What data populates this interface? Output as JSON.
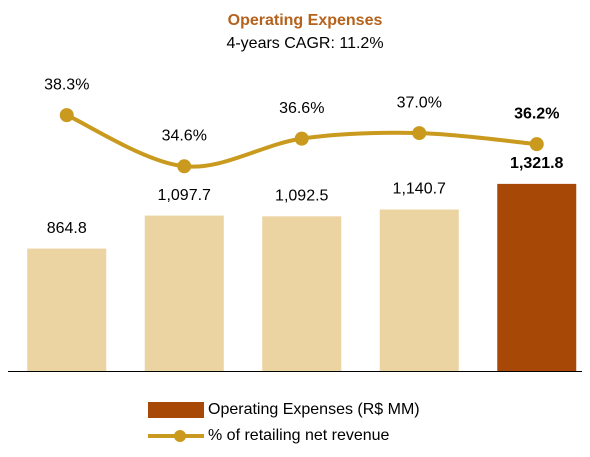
{
  "chart_data": {
    "type": "bar",
    "title": "Operating Expenses",
    "subtitle": "4-years CAGR: 11.2%",
    "series": [
      {
        "name": "Operating Expenses (R$ MM)",
        "type": "bar",
        "colors": [
          "#ecd4a2",
          "#ecd4a2",
          "#ecd4a2",
          "#ecd4a2",
          "#a84806"
        ],
        "color": "#a84806",
        "values": [
          864.8,
          1097.7,
          1092.5,
          1140.7,
          1321.8
        ],
        "value_labels": [
          "864.8",
          "1,097.7",
          "1,092.5",
          "1,140.7",
          "1,321.8"
        ]
      },
      {
        "name": "% of retailing net revenue",
        "type": "line",
        "axis": "y2",
        "color": "#c99a1e",
        "values": [
          38.3,
          34.6,
          36.6,
          37.0,
          36.2
        ],
        "value_labels": [
          "38.3%",
          "34.6%",
          "36.6%",
          "37.0%",
          "36.2%"
        ]
      }
    ],
    "ylim": [
      0,
      2550
    ],
    "y2lim": [
      19.8,
      45.9
    ],
    "grid": false
  }
}
